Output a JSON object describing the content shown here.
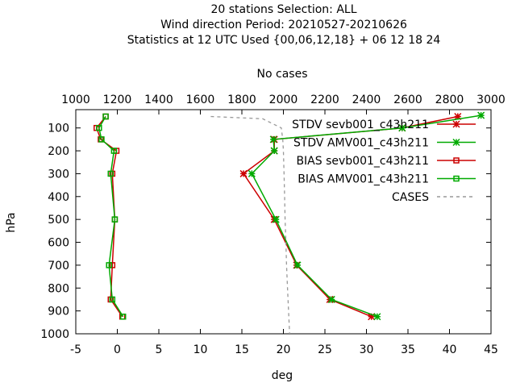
{
  "chart_data": {
    "type": "line",
    "title_lines": [
      "20 stations Selection: ALL",
      "Wind direction  Period: 20210527-20210626",
      "Statistics at 12 UTC  Used {00,06,12,18} + 06 12 18 24"
    ],
    "xlabel": "deg",
    "ylabel": "hPa",
    "x2label": "No cases",
    "xlim": [
      -5,
      45
    ],
    "ylim": [
      1000,
      20
    ],
    "x2lim": [
      1000,
      3000
    ],
    "xticks": [
      -5,
      0,
      5,
      10,
      15,
      20,
      25,
      30,
      35,
      40,
      45
    ],
    "yticks": [
      100,
      200,
      300,
      400,
      500,
      600,
      700,
      800,
      900,
      1000
    ],
    "x2ticks": [
      1000,
      1200,
      1400,
      1600,
      1800,
      2000,
      2200,
      2400,
      2600,
      2800,
      3000
    ],
    "grid": false,
    "legend_position": "top-right",
    "series": [
      {
        "name": "STDV sevb001_c43h211",
        "color": "#cc0000",
        "marker": "star",
        "dashed": false,
        "points": [
          [
            41.0,
            50
          ],
          [
            34.3,
            100
          ],
          [
            18.9,
            150
          ],
          [
            18.9,
            200
          ],
          [
            15.2,
            300
          ],
          [
            18.9,
            500
          ],
          [
            21.6,
            700
          ],
          [
            25.6,
            850
          ],
          [
            30.6,
            925
          ]
        ]
      },
      {
        "name": "STDV AMV001_c43h211",
        "color": "#00aa00",
        "marker": "star",
        "dashed": false,
        "points": [
          [
            43.8,
            45
          ],
          [
            34.3,
            100
          ],
          [
            18.8,
            150
          ],
          [
            18.9,
            200
          ],
          [
            16.2,
            300
          ],
          [
            19.1,
            500
          ],
          [
            21.7,
            700
          ],
          [
            25.8,
            850
          ],
          [
            31.3,
            925
          ]
        ]
      },
      {
        "name": "BIAS sevb001_c43h211",
        "color": "#cc0000",
        "marker": "square",
        "dashed": false,
        "points": [
          [
            -1.4,
            50
          ],
          [
            -2.5,
            100
          ],
          [
            -2.0,
            150
          ],
          [
            -0.1,
            200
          ],
          [
            -0.6,
            300
          ],
          [
            -0.3,
            500
          ],
          [
            -0.6,
            700
          ],
          [
            -0.8,
            850
          ],
          [
            0.6,
            925
          ]
        ]
      },
      {
        "name": "BIAS AMV001_c43h211",
        "color": "#00aa00",
        "marker": "square",
        "dashed": false,
        "points": [
          [
            -1.4,
            50
          ],
          [
            -2.2,
            100
          ],
          [
            -1.9,
            150
          ],
          [
            -0.4,
            200
          ],
          [
            -0.8,
            300
          ],
          [
            -0.3,
            500
          ],
          [
            -1.0,
            700
          ],
          [
            -0.6,
            850
          ],
          [
            0.7,
            925
          ]
        ]
      },
      {
        "name": "CASES",
        "color": "#999999",
        "marker": "none",
        "dashed": true,
        "axis": "x2",
        "points": [
          [
            1650,
            50
          ],
          [
            1900,
            60
          ],
          [
            1990,
            100
          ],
          [
            1997,
            150
          ],
          [
            2000,
            200
          ],
          [
            2003,
            300
          ],
          [
            2006,
            400
          ],
          [
            2008,
            500
          ],
          [
            2012,
            600
          ],
          [
            2015,
            700
          ],
          [
            2020,
            800
          ],
          [
            2025,
            900
          ],
          [
            2030,
            1000
          ]
        ]
      }
    ]
  }
}
